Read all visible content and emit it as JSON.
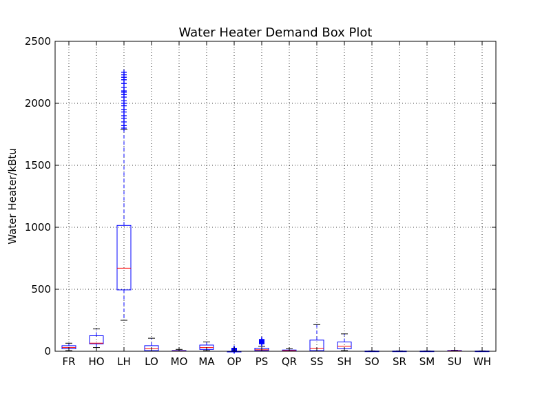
{
  "chart_data": {
    "type": "box",
    "title": "Water Heater Demand Box Plot",
    "xlabel": "",
    "ylabel": "Water Heater/kBtu",
    "ylim": [
      0,
      2500
    ],
    "yticks": [
      0,
      500,
      1000,
      1500,
      2000,
      2500
    ],
    "grid": true,
    "categories": [
      "FR",
      "HO",
      "LH",
      "LO",
      "MO",
      "MA",
      "OP",
      "PS",
      "QR",
      "SS",
      "SH",
      "SO",
      "SR",
      "SM",
      "SU",
      "WH"
    ],
    "boxes": [
      {
        "label": "FR",
        "whisker_low": 5,
        "q1": 20,
        "median": 30,
        "q3": 45,
        "whisker_high": 65,
        "outliers": []
      },
      {
        "label": "HO",
        "whisker_low": 30,
        "q1": 60,
        "median": 65,
        "q3": 125,
        "whisker_high": 180,
        "outliers": []
      },
      {
        "label": "LH",
        "whisker_low": 250,
        "q1": 495,
        "median": 670,
        "q3": 1015,
        "whisker_high": 1790,
        "outliers": [
          1800,
          1820,
          1850,
          1880,
          1900,
          1930,
          1950,
          1980,
          2000,
          2020,
          2050,
          2070,
          2090,
          2100,
          2130,
          2160,
          2190,
          2210,
          2230,
          2250
        ]
      },
      {
        "label": "LO",
        "whisker_low": 0,
        "q1": 5,
        "median": 20,
        "q3": 45,
        "whisker_high": 105,
        "outliers": []
      },
      {
        "label": "MO",
        "whisker_low": 0,
        "q1": 0,
        "median": 2,
        "q3": 6,
        "whisker_high": 15,
        "outliers": []
      },
      {
        "label": "MA",
        "whisker_low": 5,
        "q1": 15,
        "median": 30,
        "q3": 50,
        "whisker_high": 75,
        "outliers": []
      },
      {
        "label": "OP",
        "whisker_low": 0,
        "q1": 0,
        "median": 0,
        "q3": 0,
        "whisker_high": 0,
        "outliers": [
          3,
          6,
          9,
          12,
          15,
          18,
          21,
          24
        ]
      },
      {
        "label": "PS",
        "whisker_low": 0,
        "q1": 5,
        "median": 12,
        "q3": 25,
        "whisker_high": 40,
        "outliers": [
          60,
          65,
          70,
          75,
          80,
          85,
          90,
          95
        ]
      },
      {
        "label": "QR",
        "whisker_low": 0,
        "q1": 2,
        "median": 5,
        "q3": 10,
        "whisker_high": 20,
        "outliers": []
      },
      {
        "label": "SS",
        "whisker_low": 0,
        "q1": 5,
        "median": 25,
        "q3": 90,
        "whisker_high": 215,
        "outliers": []
      },
      {
        "label": "SH",
        "whisker_low": 5,
        "q1": 20,
        "median": 40,
        "q3": 75,
        "whisker_high": 140,
        "outliers": []
      },
      {
        "label": "SO",
        "whisker_low": 0,
        "q1": 0,
        "median": 0,
        "q3": 2,
        "whisker_high": 3,
        "outliers": []
      },
      {
        "label": "SR",
        "whisker_low": 0,
        "q1": 0,
        "median": 0,
        "q3": 2,
        "whisker_high": 3,
        "outliers": []
      },
      {
        "label": "SM",
        "whisker_low": 0,
        "q1": 0,
        "median": 0,
        "q3": 2,
        "whisker_high": 3,
        "outliers": []
      },
      {
        "label": "SU",
        "whisker_low": 0,
        "q1": 1,
        "median": 3,
        "q3": 6,
        "whisker_high": 8,
        "outliers": []
      },
      {
        "label": "WH",
        "whisker_low": 0,
        "q1": 0,
        "median": 0,
        "q3": 2,
        "whisker_high": 3,
        "outliers": []
      }
    ],
    "colors": {
      "box": "#0000ff",
      "median": "#ff0000",
      "whisker": "#0000ff",
      "cap": "#000000",
      "grid": "#000000"
    }
  }
}
